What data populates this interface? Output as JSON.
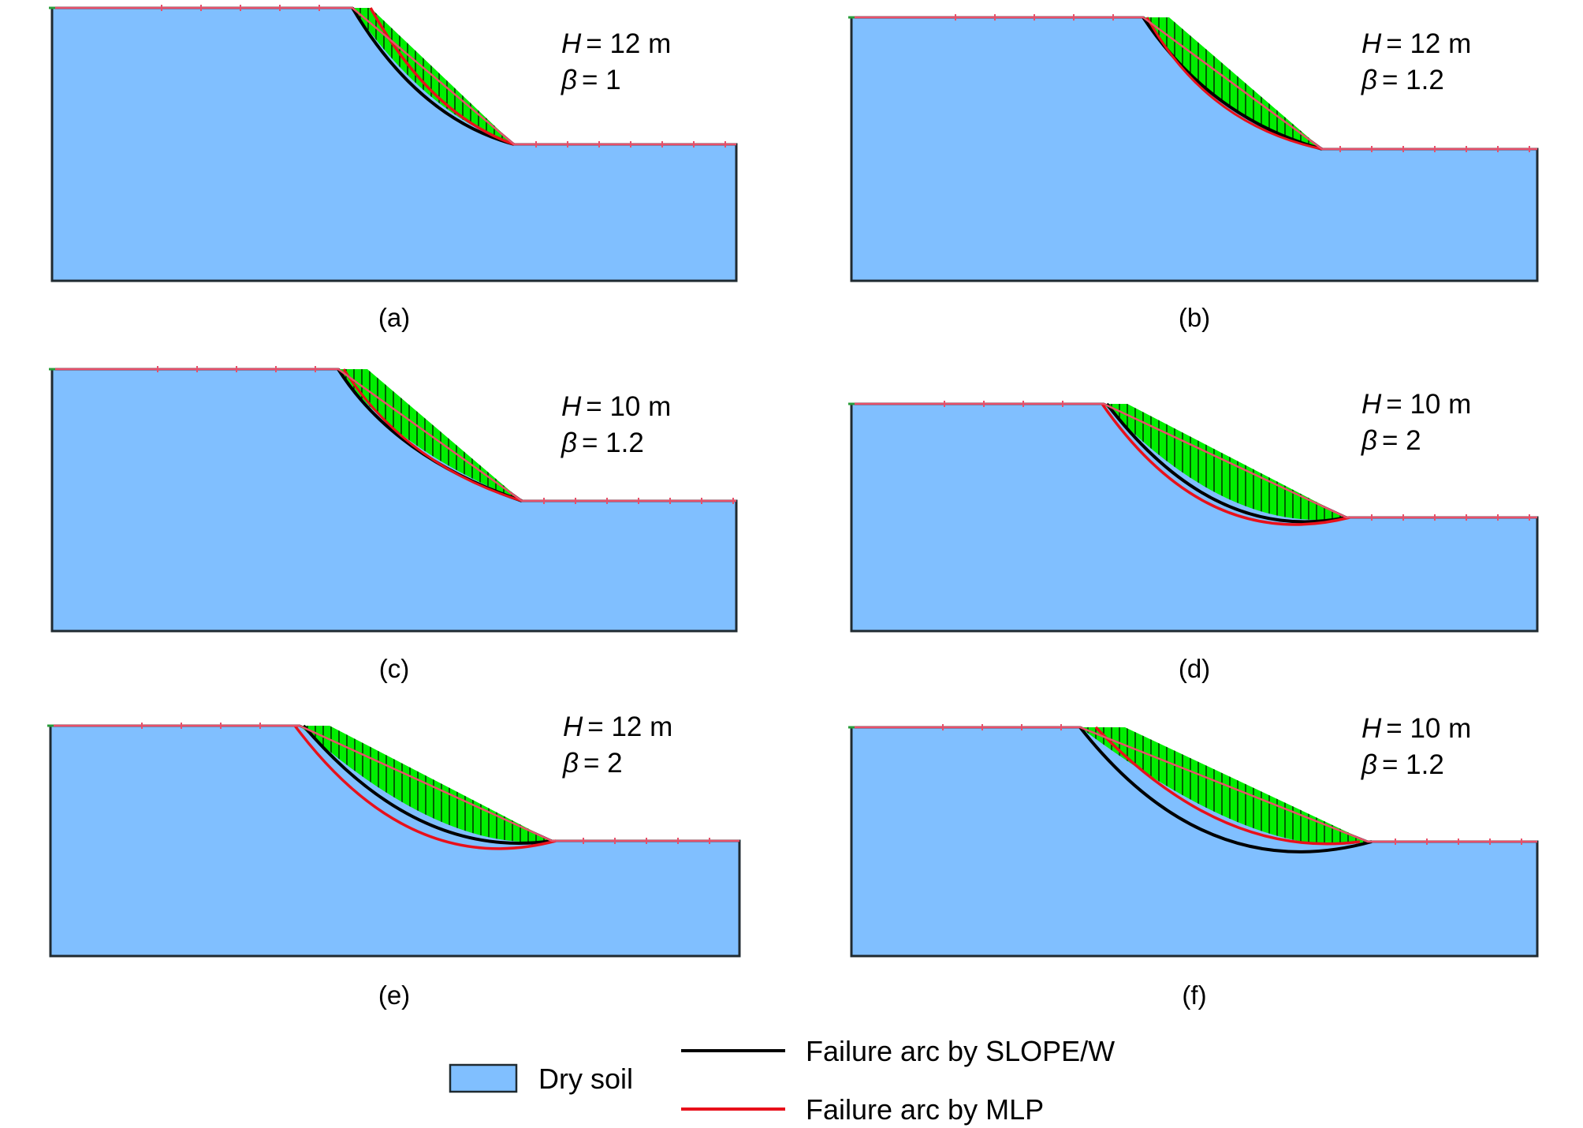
{
  "panels": [
    {
      "id": "a",
      "caption": "(a)",
      "h_label": "H",
      "h_value": "= 12 m",
      "beta_label": "β",
      "beta_value": "= 1"
    },
    {
      "id": "b",
      "caption": "(b)",
      "h_label": "H",
      "h_value": "= 12 m",
      "beta_label": "β",
      "beta_value": "= 1.2"
    },
    {
      "id": "c",
      "caption": "(c)",
      "h_label": "H",
      "h_value": "= 10 m",
      "beta_label": "β",
      "beta_value": "= 1.2"
    },
    {
      "id": "d",
      "caption": "(d)",
      "h_label": "H",
      "h_value": "= 10 m",
      "beta_label": "β",
      "beta_value": "= 2"
    },
    {
      "id": "e",
      "caption": "(e)",
      "h_label": "H",
      "h_value": "= 12 m",
      "beta_label": "β",
      "beta_value": "= 2"
    },
    {
      "id": "f",
      "caption": "(f)",
      "h_label": "H",
      "h_value": "= 10 m",
      "beta_label": "β",
      "beta_value": "= 1.2"
    }
  ],
  "legend": {
    "dry_soil_label": "Dry soil",
    "slopew_label": "Failure arc by SLOPE/W",
    "mlp_label": "Failure arc by MLP"
  },
  "colors": {
    "dry_soil": "#80bfff",
    "sliding_mass": "#00ee00",
    "slopew_arc": "#000000",
    "mlp_arc": "#e8101a",
    "surface_boundary": "#e8506a"
  }
}
